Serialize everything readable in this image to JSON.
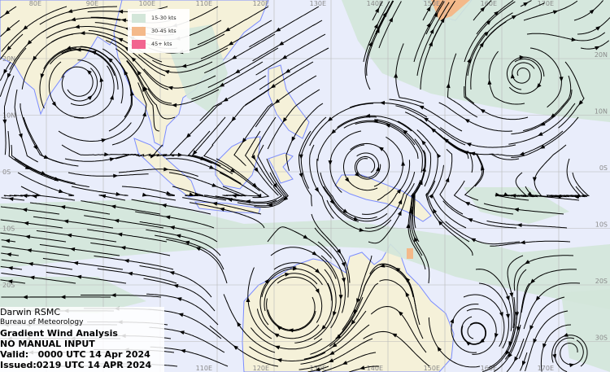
{
  "title_box": {
    "center": "Darwin RSMC",
    "agency": "Bureau of Meteorology",
    "product": "Gradient Wind Analysis",
    "input": "NO MANUAL INPUT",
    "valid": "Valid:   0000 UTC 14 Apr 2024",
    "issued": "Issued:0219 UTC 14 APR 2024"
  },
  "legend": [
    {
      "label": "15-30 kts",
      "color": "#d3e6d9"
    },
    {
      "label": "30-45 kts",
      "color": "#f4b98a"
    },
    {
      "label": "45+ kts",
      "color": "#f2648f"
    }
  ],
  "grid": {
    "longitudes": [
      "80E",
      "90E",
      "100E",
      "110E",
      "120E",
      "130E",
      "140E",
      "150E",
      "160E",
      "170E"
    ],
    "latitudes": [
      "20N",
      "10N",
      "0S",
      "10S",
      "20S",
      "30S"
    ]
  },
  "colors": {
    "ocean": "#e9edfb",
    "land": "#f5f1d9",
    "coastline": "#7b8cff",
    "streamline": "#000000"
  }
}
